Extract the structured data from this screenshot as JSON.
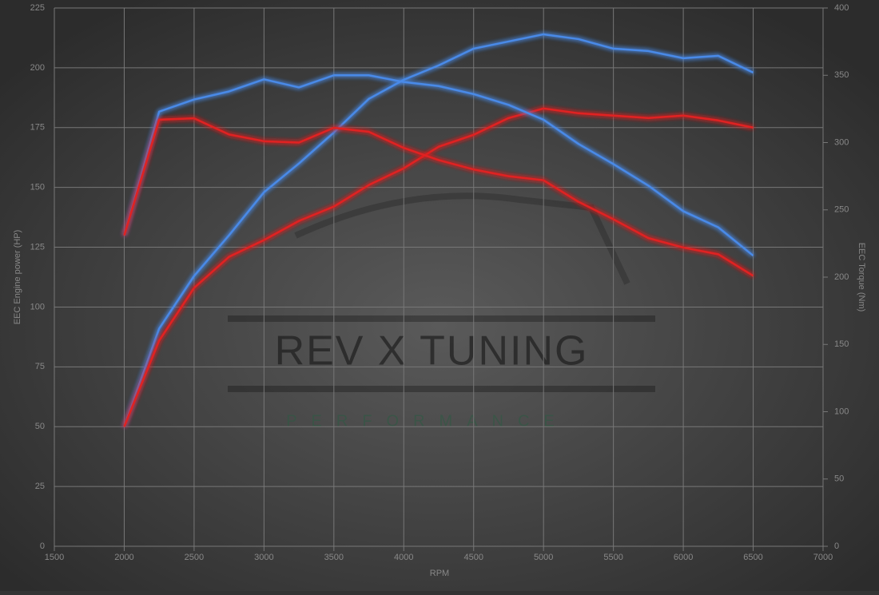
{
  "chart_data": {
    "type": "line",
    "x_label": "RPM",
    "y_label": "EEC Engine power (HP)",
    "y2_label": "EEC Torque (Nm)",
    "watermark": "REV X TUNING",
    "watermark_sub": "PERFORMANCE",
    "x": [
      2000,
      2250,
      2500,
      2750,
      3000,
      3250,
      3500,
      3750,
      4000,
      4250,
      4500,
      4750,
      5000,
      5250,
      5500,
      5750,
      6000,
      6250,
      6500
    ],
    "series": [
      {
        "color": "#4a8ae8",
        "values": [
          50,
          91,
          113,
          130,
          148,
          160,
          173,
          187,
          195,
          201,
          208,
          211,
          214,
          212,
          208,
          207,
          204,
          205,
          198
        ]
      },
      {
        "color": "#e02424",
        "values": [
          50,
          86,
          108,
          121,
          128,
          136,
          142,
          151,
          158,
          167,
          172,
          179,
          183,
          181,
          180,
          179,
          180,
          178,
          175
        ]
      },
      {
        "color": "#4a8ae8",
        "axis": "y2",
        "values": [
          231,
          323,
          332,
          338,
          347,
          341,
          350,
          350,
          345,
          342,
          336,
          328,
          317,
          299,
          284,
          268,
          249,
          237,
          216
        ]
      },
      {
        "color": "#e02424",
        "axis": "y2",
        "values": [
          231,
          317,
          318,
          306,
          301,
          300,
          311,
          308,
          296,
          287,
          280,
          275,
          272,
          256,
          243,
          229,
          222,
          217,
          201
        ]
      }
    ],
    "xlim": [
      1500,
      7000
    ],
    "xticks": [
      1500,
      2000,
      2500,
      3000,
      3500,
      4000,
      4500,
      5000,
      5500,
      6000,
      6500,
      7000
    ],
    "ylim": [
      0,
      225
    ],
    "yticks": [
      0,
      25,
      50,
      75,
      100,
      125,
      150,
      175,
      200,
      225
    ],
    "y2lim": [
      0,
      400
    ],
    "y2ticks": [
      0,
      50,
      100,
      150,
      200,
      250,
      300,
      350,
      400
    ],
    "grid": true
  }
}
